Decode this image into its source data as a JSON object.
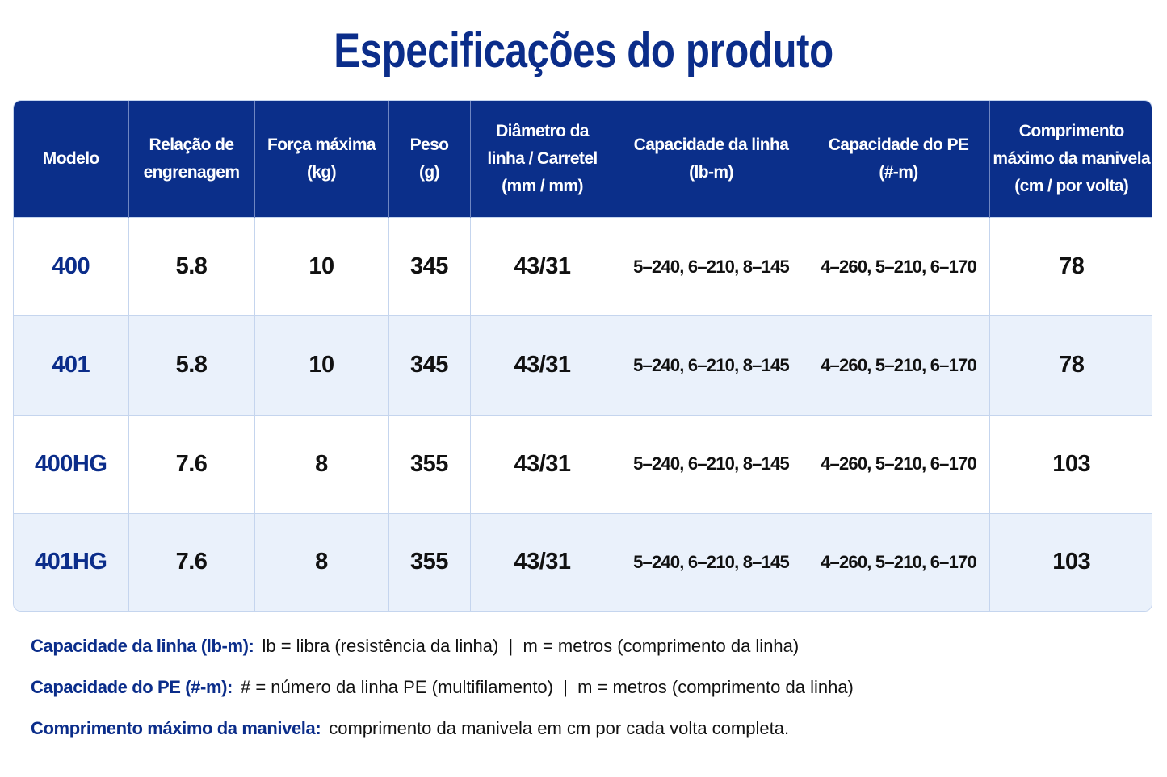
{
  "header": {
    "title": "Especificações do produto"
  },
  "table": {
    "columns": [
      [
        "Modelo"
      ],
      [
        "Relação de",
        "engrenagem"
      ],
      [
        "Força máxima",
        "(kg)"
      ],
      [
        "Peso",
        "(g)"
      ],
      [
        "Diâmetro da",
        "linha / Carretel",
        "(mm / mm)"
      ],
      [
        "Capacidade da linha",
        "(lb-m)"
      ],
      [
        "Capacidade do PE",
        "(#-m)"
      ],
      [
        "Comprimento",
        "máximo da manivela",
        "(cm / por volta)"
      ]
    ],
    "rows": [
      [
        "400",
        "5.8",
        "10",
        "345",
        "43/31",
        "5–240, 6–210, 8–145",
        "4–260, 5–210, 6–170",
        "78"
      ],
      [
        "401",
        "5.8",
        "10",
        "345",
        "43/31",
        "5–240, 6–210, 8–145",
        "4–260, 5–210, 6–170",
        "78"
      ],
      [
        "400HG",
        "7.6",
        "8",
        "355",
        "43/31",
        "5–240, 6–210, 8–145",
        "4–260, 5–210, 6–170",
        "103"
      ],
      [
        "401HG",
        "7.6",
        "8",
        "355",
        "43/31",
        "5–240, 6–210, 8–145",
        "4–260, 5–210, 6–170",
        "103"
      ]
    ]
  },
  "notes": [
    {
      "label": "Capacidade da linha (lb-m):",
      "text": "lb = libra (resistência da linha)  |  m = metros (comprimento da linha)"
    },
    {
      "label": "Capacidade do PE (#-m):",
      "text": "# = número da linha PE (multifilamento)  |  m = metros (comprimento da linha)"
    },
    {
      "label": "Comprimento máximo da manivela:",
      "text": "comprimento da manivela em cm por cada volta completa."
    }
  ]
}
